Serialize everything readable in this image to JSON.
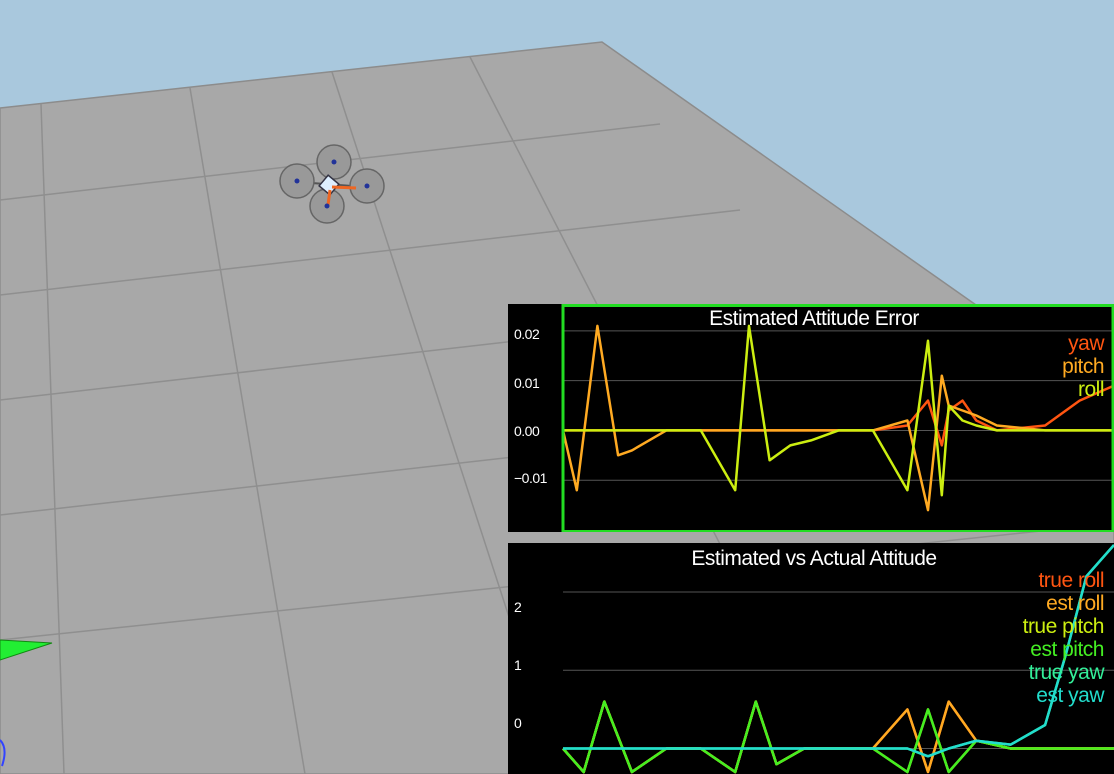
{
  "colors": {
    "sky": "#a9c8dd",
    "ground": "#a8a8a8",
    "grid_line": "#8c8c8c",
    "panel_bg": "#000000",
    "active_border": "#22dd22"
  },
  "scene": {
    "drone_icon": "quadcopter-icon",
    "axis_icon": "axis-arrow-icon"
  },
  "error_plot": {
    "title": "Estimated Attitude Error",
    "selected": true,
    "yticks": [
      "0.02",
      "0.01",
      "0.00",
      "−0.01"
    ],
    "legend": [
      {
        "label": "yaw",
        "color": "#ff5511"
      },
      {
        "label": "pitch",
        "color": "#ffaa22"
      },
      {
        "label": "roll",
        "color": "#ccee11"
      }
    ]
  },
  "attitude_plot": {
    "title": "Estimated vs Actual Attitude",
    "selected": false,
    "yticks": [
      "2",
      "1",
      "0"
    ],
    "legend": [
      {
        "label": "true roll",
        "color": "#ff5511"
      },
      {
        "label": "est roll",
        "color": "#ffaa22"
      },
      {
        "label": "true pitch",
        "color": "#ccee11"
      },
      {
        "label": "est pitch",
        "color": "#44ee22"
      },
      {
        "label": "true yaw",
        "color": "#33ee99"
      },
      {
        "label": "est yaw",
        "color": "#22ddcc"
      }
    ]
  },
  "chart_data": [
    {
      "type": "line",
      "title": "Estimated Attitude Error",
      "ylim": [
        -0.02,
        0.025
      ],
      "x": [
        0,
        0.2,
        0.5,
        0.8,
        1.0,
        1.5,
        2.0,
        2.5,
        2.7,
        3.0,
        3.3,
        3.6,
        4.0,
        4.5,
        5.0,
        5.3,
        5.5,
        5.6,
        5.8,
        6.0,
        6.3,
        7.0,
        7.5,
        8.0
      ],
      "series": [
        {
          "name": "yaw",
          "values": [
            0,
            0,
            0,
            0,
            0,
            0,
            0,
            0,
            0,
            0,
            0,
            0,
            0,
            0,
            0.001,
            0.006,
            -0.003,
            0.004,
            0.006,
            0.002,
            0,
            0.001,
            0.006,
            0.009
          ]
        },
        {
          "name": "pitch",
          "values": [
            0,
            -0.012,
            0.021,
            -0.005,
            -0.004,
            0,
            0,
            0,
            0,
            0,
            0,
            0,
            0,
            0,
            0.002,
            -0.016,
            0.011,
            0.005,
            0.004,
            0.003,
            0.001,
            0,
            0,
            0
          ]
        },
        {
          "name": "roll",
          "values": [
            0,
            0,
            0,
            0,
            0,
            0,
            0,
            -0.012,
            0.021,
            -0.006,
            -0.003,
            -0.002,
            0,
            0,
            -0.012,
            0.018,
            -0.013,
            0.005,
            0.002,
            0.001,
            0,
            0,
            0,
            0
          ]
        }
      ]
    },
    {
      "type": "line",
      "title": "Estimated vs Actual Attitude",
      "ylim": [
        -0.3,
        2.6
      ],
      "x": [
        0,
        0.3,
        0.6,
        1.0,
        1.5,
        2.0,
        2.5,
        2.8,
        3.1,
        3.5,
        4.0,
        4.5,
        5.0,
        5.3,
        5.6,
        6.0,
        6.5,
        7.0,
        7.3,
        7.6,
        8.0
      ],
      "series": [
        {
          "name": "true roll",
          "values": [
            0,
            -0.4,
            0.6,
            -0.3,
            0,
            0,
            -0.4,
            0.6,
            -0.2,
            0,
            0,
            0,
            0.5,
            -0.6,
            0.6,
            0.1,
            0,
            0,
            0,
            0,
            0
          ]
        },
        {
          "name": "est roll",
          "values": [
            0,
            -0.4,
            0.6,
            -0.3,
            0,
            0,
            -0.4,
            0.6,
            -0.2,
            0,
            0,
            0,
            0.5,
            -0.6,
            0.6,
            0.1,
            0,
            0,
            0,
            0,
            0
          ]
        },
        {
          "name": "true pitch",
          "values": [
            0,
            -0.4,
            0.6,
            -0.3,
            0,
            0,
            -0.4,
            0.6,
            -0.2,
            0,
            0,
            0,
            -0.5,
            0.5,
            -0.6,
            0.1,
            0,
            0,
            0,
            0,
            0
          ]
        },
        {
          "name": "est pitch",
          "values": [
            0,
            -0.4,
            0.6,
            -0.3,
            0,
            0,
            -0.4,
            0.6,
            -0.2,
            0,
            0,
            0,
            -0.5,
            0.5,
            -0.6,
            0.1,
            0,
            0,
            0,
            0,
            0
          ]
        },
        {
          "name": "true yaw",
          "values": [
            0,
            0,
            0,
            0,
            0,
            0,
            0,
            0,
            0,
            0,
            0,
            0,
            0,
            -0.1,
            0,
            0.1,
            0.05,
            0.3,
            1.2,
            2.2,
            2.8
          ]
        },
        {
          "name": "est yaw",
          "values": [
            0,
            0,
            0,
            0,
            0,
            0,
            0,
            0,
            0,
            0,
            0,
            0,
            0,
            -0.1,
            0,
            0.1,
            0.05,
            0.3,
            1.2,
            2.2,
            2.8
          ]
        }
      ]
    }
  ]
}
